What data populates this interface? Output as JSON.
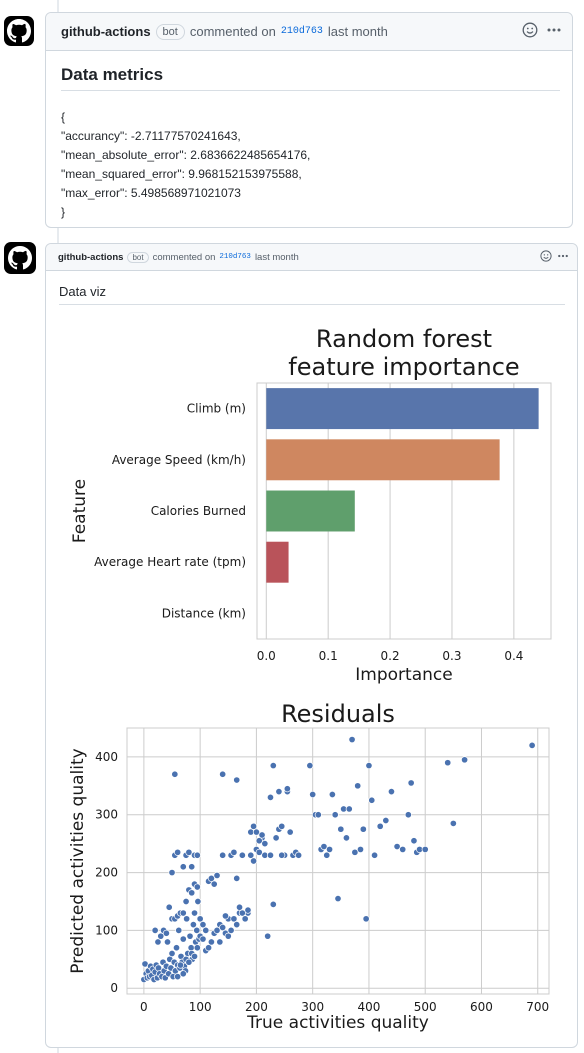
{
  "comment1": {
    "author": "github-actions",
    "badge": "bot",
    "commented_on": "commented on",
    "sha": "210d763",
    "time": "last month",
    "title": "Data metrics",
    "lines": [
      "{",
      "\"accurancy\": -2.71177570241643,",
      "\"mean_absolute_error\": 2.6836622485654176,",
      "\"mean_squared_error\": 9.968152153975588,",
      "\"max_error\": 5.498568971021073",
      "}"
    ]
  },
  "comment2": {
    "author": "github-actions",
    "badge": "bot",
    "commented_on": "commented on",
    "sha": "210d763",
    "time": "last month",
    "title": "Data viz"
  },
  "icons": {
    "reaction": "smiley-icon",
    "menu": "kebab-icon",
    "avatar": "github-octocat-icon"
  },
  "colors": {
    "blue": "#5875ab",
    "orange": "#cf8760",
    "green": "#5f9f6c",
    "red": "#b9535a",
    "point": "#4a72b0",
    "link": "#0969da"
  },
  "chart_data": [
    {
      "type": "bar",
      "orientation": "horizontal",
      "title": "Random forest\nfeature importance",
      "xlabel": "Importance",
      "ylabel": "Feature",
      "categories": [
        "Climb (m)",
        "Average Speed (km/h)",
        "Calories Burned",
        "Average Heart rate (tpm)",
        "Distance (km)"
      ],
      "values": [
        0.44,
        0.377,
        0.143,
        0.036,
        0.0
      ],
      "colors": [
        "#5875ab",
        "#cf8760",
        "#5f9f6c",
        "#b9535a",
        "#8172b3"
      ],
      "xlim": [
        -0.015,
        0.46
      ],
      "xticks": [
        0.0,
        0.1,
        0.2,
        0.3,
        0.4
      ],
      "xtick_labels": [
        "0.0",
        "0.1",
        "0.2",
        "0.3",
        "0.4"
      ],
      "grid": true
    },
    {
      "type": "scatter",
      "title": "Residuals",
      "xlabel": "True activities quality",
      "ylabel": "Predicted activities quality",
      "xlim": [
        -30,
        720
      ],
      "ylim": [
        -10,
        450
      ],
      "xticks": [
        0,
        100,
        200,
        300,
        400,
        500,
        600,
        700
      ],
      "xtick_labels": [
        "0",
        "100",
        "200",
        "300",
        "400",
        "500",
        "600",
        "700"
      ],
      "yticks": [
        0,
        100,
        200,
        300,
        400
      ],
      "ytick_labels": [
        "0",
        "100",
        "200",
        "300",
        "400"
      ],
      "grid": true,
      "points": [
        [
          0,
          15
        ],
        [
          2,
          42
        ],
        [
          4,
          25
        ],
        [
          6,
          18
        ],
        [
          8,
          30
        ],
        [
          10,
          20
        ],
        [
          12,
          38
        ],
        [
          14,
          22
        ],
        [
          16,
          33
        ],
        [
          18,
          15
        ],
        [
          20,
          28
        ],
        [
          22,
          40
        ],
        [
          24,
          18
        ],
        [
          26,
          35
        ],
        [
          28,
          25
        ],
        [
          30,
          90
        ],
        [
          32,
          20
        ],
        [
          34,
          45
        ],
        [
          36,
          30
        ],
        [
          38,
          18
        ],
        [
          40,
          38
        ],
        [
          42,
          80
        ],
        [
          44,
          25
        ],
        [
          46,
          50
        ],
        [
          48,
          35
        ],
        [
          50,
          60
        ],
        [
          52,
          20
        ],
        [
          54,
          45
        ],
        [
          56,
          30
        ],
        [
          58,
          70
        ],
        [
          60,
          40
        ],
        [
          62,
          100
        ],
        [
          64,
          35
        ],
        [
          66,
          55
        ],
        [
          68,
          45
        ],
        [
          70,
          85
        ],
        [
          72,
          38
        ],
        [
          74,
          30
        ],
        [
          76,
          120
        ],
        [
          78,
          60
        ],
        [
          80,
          45
        ],
        [
          82,
          90
        ],
        [
          84,
          70
        ],
        [
          86,
          50
        ],
        [
          88,
          110
        ],
        [
          90,
          130
        ],
        [
          92,
          80
        ],
        [
          94,
          100
        ],
        [
          96,
          150
        ],
        [
          98,
          85
        ],
        [
          20,
          100
        ],
        [
          25,
          80
        ],
        [
          35,
          100
        ],
        [
          40,
          95
        ],
        [
          45,
          140
        ],
        [
          50,
          120
        ],
        [
          55,
          120
        ],
        [
          60,
          125
        ],
        [
          65,
          130
        ],
        [
          70,
          130
        ],
        [
          75,
          150
        ],
        [
          80,
          170
        ],
        [
          85,
          165
        ],
        [
          90,
          180
        ],
        [
          95,
          175
        ],
        [
          50,
          200
        ],
        [
          55,
          230
        ],
        [
          60,
          235
        ],
        [
          70,
          210
        ],
        [
          75,
          230
        ],
        [
          80,
          235
        ],
        [
          85,
          210
        ],
        [
          90,
          230
        ],
        [
          95,
          230
        ],
        [
          100,
          120
        ],
        [
          105,
          110
        ],
        [
          110,
          100
        ],
        [
          115,
          185
        ],
        [
          120,
          190
        ],
        [
          125,
          180
        ],
        [
          130,
          195
        ],
        [
          135,
          80
        ],
        [
          140,
          230
        ],
        [
          145,
          95
        ],
        [
          150,
          120
        ],
        [
          155,
          230
        ],
        [
          160,
          235
        ],
        [
          165,
          190
        ],
        [
          170,
          130
        ],
        [
          175,
          230
        ],
        [
          180,
          120
        ],
        [
          185,
          130
        ],
        [
          190,
          230
        ],
        [
          195,
          220
        ],
        [
          200,
          240
        ],
        [
          205,
          235
        ],
        [
          210,
          260
        ],
        [
          215,
          230
        ],
        [
          220,
          90
        ],
        [
          225,
          230
        ],
        [
          230,
          145
        ],
        [
          235,
          260
        ],
        [
          240,
          275
        ],
        [
          245,
          280
        ],
        [
          250,
          230
        ],
        [
          255,
          340
        ],
        [
          260,
          270
        ],
        [
          265,
          230
        ],
        [
          270,
          235
        ],
        [
          275,
          230
        ],
        [
          55,
          370
        ],
        [
          140,
          370
        ],
        [
          165,
          360
        ],
        [
          225,
          330
        ],
        [
          230,
          385
        ],
        [
          240,
          340
        ],
        [
          255,
          345
        ],
        [
          295,
          385
        ],
        [
          300,
          335
        ],
        [
          305,
          300
        ],
        [
          310,
          300
        ],
        [
          315,
          240
        ],
        [
          320,
          245
        ],
        [
          325,
          230
        ],
        [
          330,
          240
        ],
        [
          335,
          335
        ],
        [
          340,
          300
        ],
        [
          345,
          155
        ],
        [
          350,
          275
        ],
        [
          355,
          310
        ],
        [
          360,
          260
        ],
        [
          365,
          310
        ],
        [
          370,
          430
        ],
        [
          375,
          235
        ],
        [
          380,
          350
        ],
        [
          385,
          240
        ],
        [
          390,
          275
        ],
        [
          395,
          120
        ],
        [
          400,
          385
        ],
        [
          405,
          325
        ],
        [
          410,
          230
        ],
        [
          420,
          280
        ],
        [
          430,
          290
        ],
        [
          440,
          340
        ],
        [
          450,
          245
        ],
        [
          460,
          240
        ],
        [
          470,
          300
        ],
        [
          475,
          355
        ],
        [
          480,
          255
        ],
        [
          485,
          235
        ],
        [
          490,
          240
        ],
        [
          500,
          240
        ],
        [
          540,
          390
        ],
        [
          550,
          285
        ],
        [
          570,
          395
        ],
        [
          690,
          420
        ],
        [
          60,
          20
        ],
        [
          65,
          40
        ],
        [
          70,
          25
        ],
        [
          75,
          50
        ],
        [
          80,
          45
        ],
        [
          85,
          60
        ],
        [
          90,
          55
        ],
        [
          95,
          70
        ],
        [
          100,
          90
        ],
        [
          105,
          85
        ],
        [
          110,
          65
        ],
        [
          115,
          70
        ],
        [
          120,
          80
        ],
        [
          125,
          95
        ],
        [
          130,
          100
        ],
        [
          135,
          110
        ],
        [
          140,
          105
        ],
        [
          145,
          125
        ],
        [
          150,
          90
        ],
        [
          155,
          100
        ],
        [
          160,
          120
        ],
        [
          165,
          110
        ],
        [
          170,
          140
        ],
        [
          175,
          130
        ],
        [
          180,
          120
        ],
        [
          185,
          135
        ],
        [
          190,
          270
        ],
        [
          195,
          280
        ],
        [
          200,
          270
        ],
        [
          205,
          255
        ],
        [
          210,
          265
        ],
        [
          215,
          250
        ],
        [
          225,
          230
        ],
        [
          235,
          260
        ],
        [
          245,
          230
        ]
      ]
    }
  ]
}
